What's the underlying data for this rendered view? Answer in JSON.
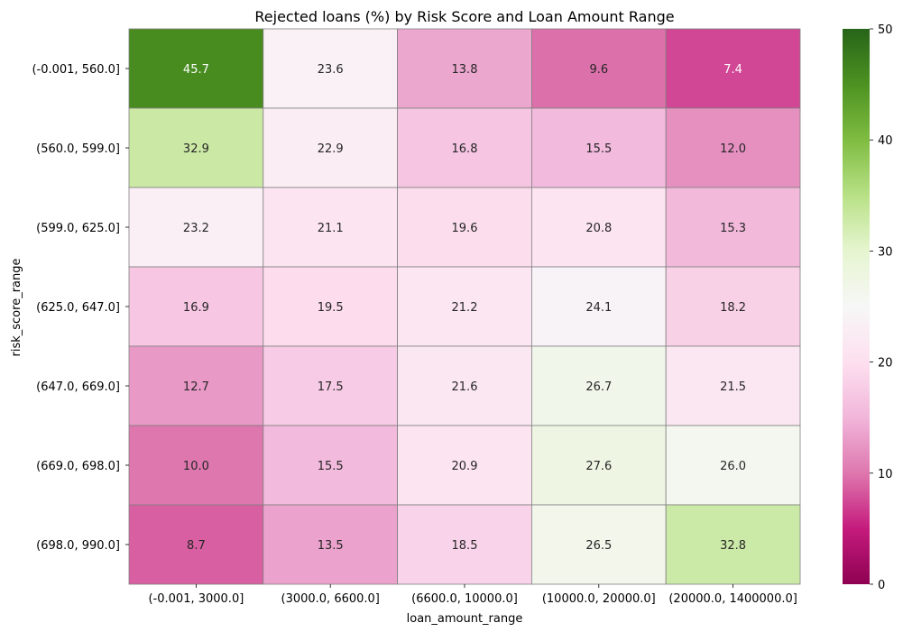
{
  "chart_data": {
    "type": "heatmap",
    "title": "Rejected loans (%) by Risk Score and Loan Amount Range",
    "xlabel": "loan_amount_range",
    "ylabel": "risk_score_range",
    "x_categories": [
      "(-0.001, 3000.0]",
      "(3000.0, 6600.0]",
      "(6600.0, 10000.0]",
      "(10000.0, 20000.0]",
      "(20000.0, 1400000.0]"
    ],
    "y_categories": [
      "(-0.001, 560.0]",
      "(560.0, 599.0]",
      "(599.0, 625.0]",
      "(625.0, 647.0]",
      "(647.0, 669.0]",
      "(669.0, 698.0]",
      "(698.0, 990.0]"
    ],
    "values": [
      [
        45.7,
        23.6,
        13.8,
        9.6,
        7.4
      ],
      [
        32.9,
        22.9,
        16.8,
        15.5,
        12.0
      ],
      [
        23.2,
        21.1,
        19.6,
        20.8,
        15.3
      ],
      [
        16.9,
        19.5,
        21.2,
        24.1,
        18.2
      ],
      [
        12.7,
        17.5,
        21.6,
        26.7,
        21.5
      ],
      [
        10.0,
        15.5,
        20.9,
        27.6,
        26.0
      ],
      [
        8.7,
        13.5,
        18.5,
        26.5,
        32.8
      ]
    ],
    "value_format": "0.1f",
    "colormap": "PiYG",
    "vmin": 0,
    "vmax": 50,
    "colorbar_ticks": [
      0,
      10,
      20,
      30,
      40,
      50
    ],
    "grid_line_color": "#808080"
  }
}
